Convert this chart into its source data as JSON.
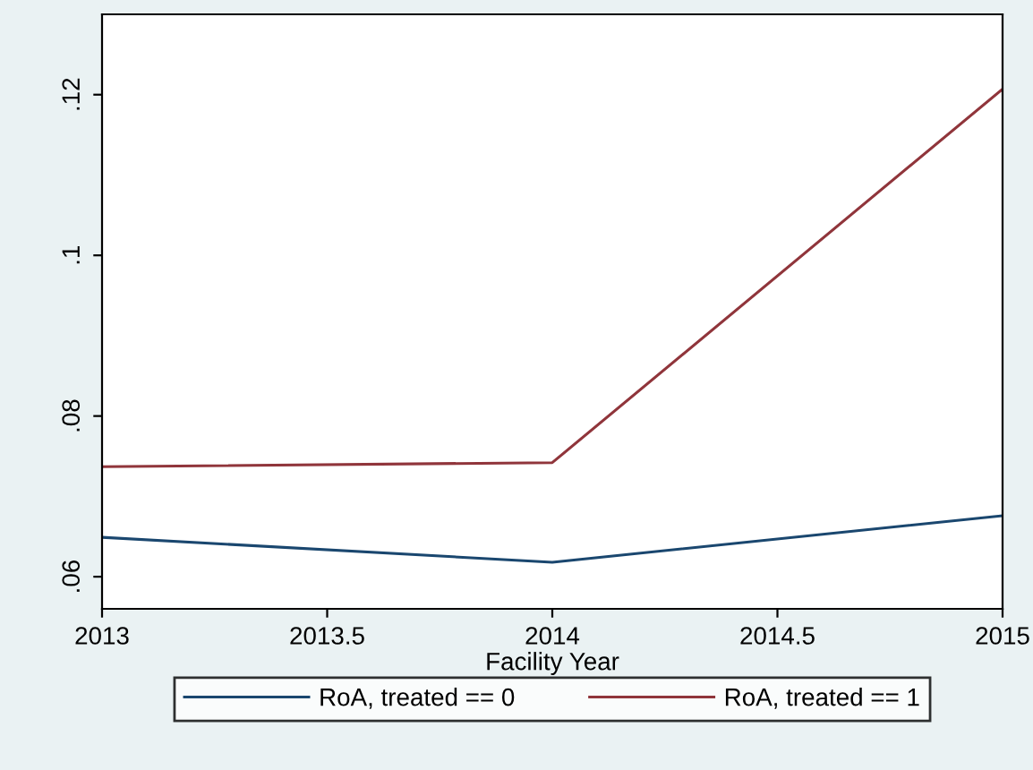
{
  "chart_data": {
    "type": "line",
    "xlabel": "Facility Year",
    "x": [
      2013,
      2014,
      2015
    ],
    "series": [
      {
        "name": "RoA, treated == 0",
        "color": "#1a476f",
        "values": [
          0.0649,
          0.0618,
          0.0676
        ]
      },
      {
        "name": "RoA, treated == 1",
        "color": "#90353b",
        "values": [
          0.0737,
          0.0742,
          0.1207
        ]
      }
    ],
    "xlim": [
      2013,
      2015
    ],
    "xticks": [
      2013,
      2013.5,
      2014,
      2014.5,
      2015
    ],
    "ylim": [
      0.056,
      0.13
    ],
    "yticks": [
      {
        "value": 0.06,
        "label": ".06"
      },
      {
        "value": 0.08,
        "label": ".08"
      },
      {
        "value": 0.1,
        "label": ".1"
      },
      {
        "value": 0.12,
        "label": ".12"
      }
    ],
    "grid": false,
    "legend": "bottom",
    "marker": "none",
    "line_style": "solid"
  }
}
